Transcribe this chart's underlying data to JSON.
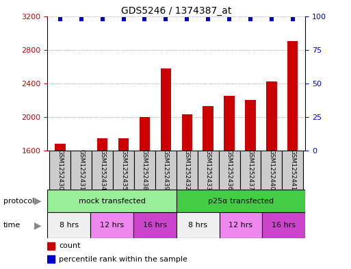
{
  "title": "GDS5246 / 1374387_at",
  "samples": [
    "GSM1252430",
    "GSM1252431",
    "GSM1252434",
    "GSM1252435",
    "GSM1252438",
    "GSM1252439",
    "GSM1252432",
    "GSM1252433",
    "GSM1252436",
    "GSM1252437",
    "GSM1252440",
    "GSM1252441"
  ],
  "bar_values": [
    1680,
    1600,
    1750,
    1750,
    2000,
    2580,
    2030,
    2130,
    2250,
    2200,
    2420,
    2900
  ],
  "percentile_values": [
    98,
    98,
    98,
    98,
    98,
    98,
    98,
    98,
    98,
    98,
    98,
    98
  ],
  "bar_color": "#cc0000",
  "dot_color": "#0000cc",
  "ylim_left": [
    1600,
    3200
  ],
  "ylim_right": [
    0,
    100
  ],
  "yticks_left": [
    1600,
    2000,
    2400,
    2800,
    3200
  ],
  "yticks_right": [
    0,
    25,
    50,
    75,
    100
  ],
  "sample_box_color": "#cccccc",
  "protocol_groups": [
    {
      "label": "mock transfected",
      "start": 0,
      "end": 6,
      "color": "#99ee99"
    },
    {
      "label": "p25α transfected",
      "start": 6,
      "end": 12,
      "color": "#44cc44"
    }
  ],
  "time_groups": [
    {
      "label": "8 hrs",
      "start": 0,
      "end": 2,
      "color": "#f0f0f0"
    },
    {
      "label": "12 hrs",
      "start": 2,
      "end": 4,
      "color": "#ee88ee"
    },
    {
      "label": "16 hrs",
      "start": 4,
      "end": 6,
      "color": "#cc44cc"
    },
    {
      "label": "8 hrs",
      "start": 6,
      "end": 8,
      "color": "#f0f0f0"
    },
    {
      "label": "12 hrs",
      "start": 8,
      "end": 10,
      "color": "#ee88ee"
    },
    {
      "label": "16 hrs",
      "start": 10,
      "end": 12,
      "color": "#cc44cc"
    }
  ],
  "legend_count_label": "count",
  "legend_percentile_label": "percentile rank within the sample",
  "protocol_label": "protocol",
  "time_label": "time",
  "bg_color": "#ffffff",
  "grid_color": "#888888",
  "left_tick_color": "#cc0000",
  "right_tick_color": "#0000cc"
}
